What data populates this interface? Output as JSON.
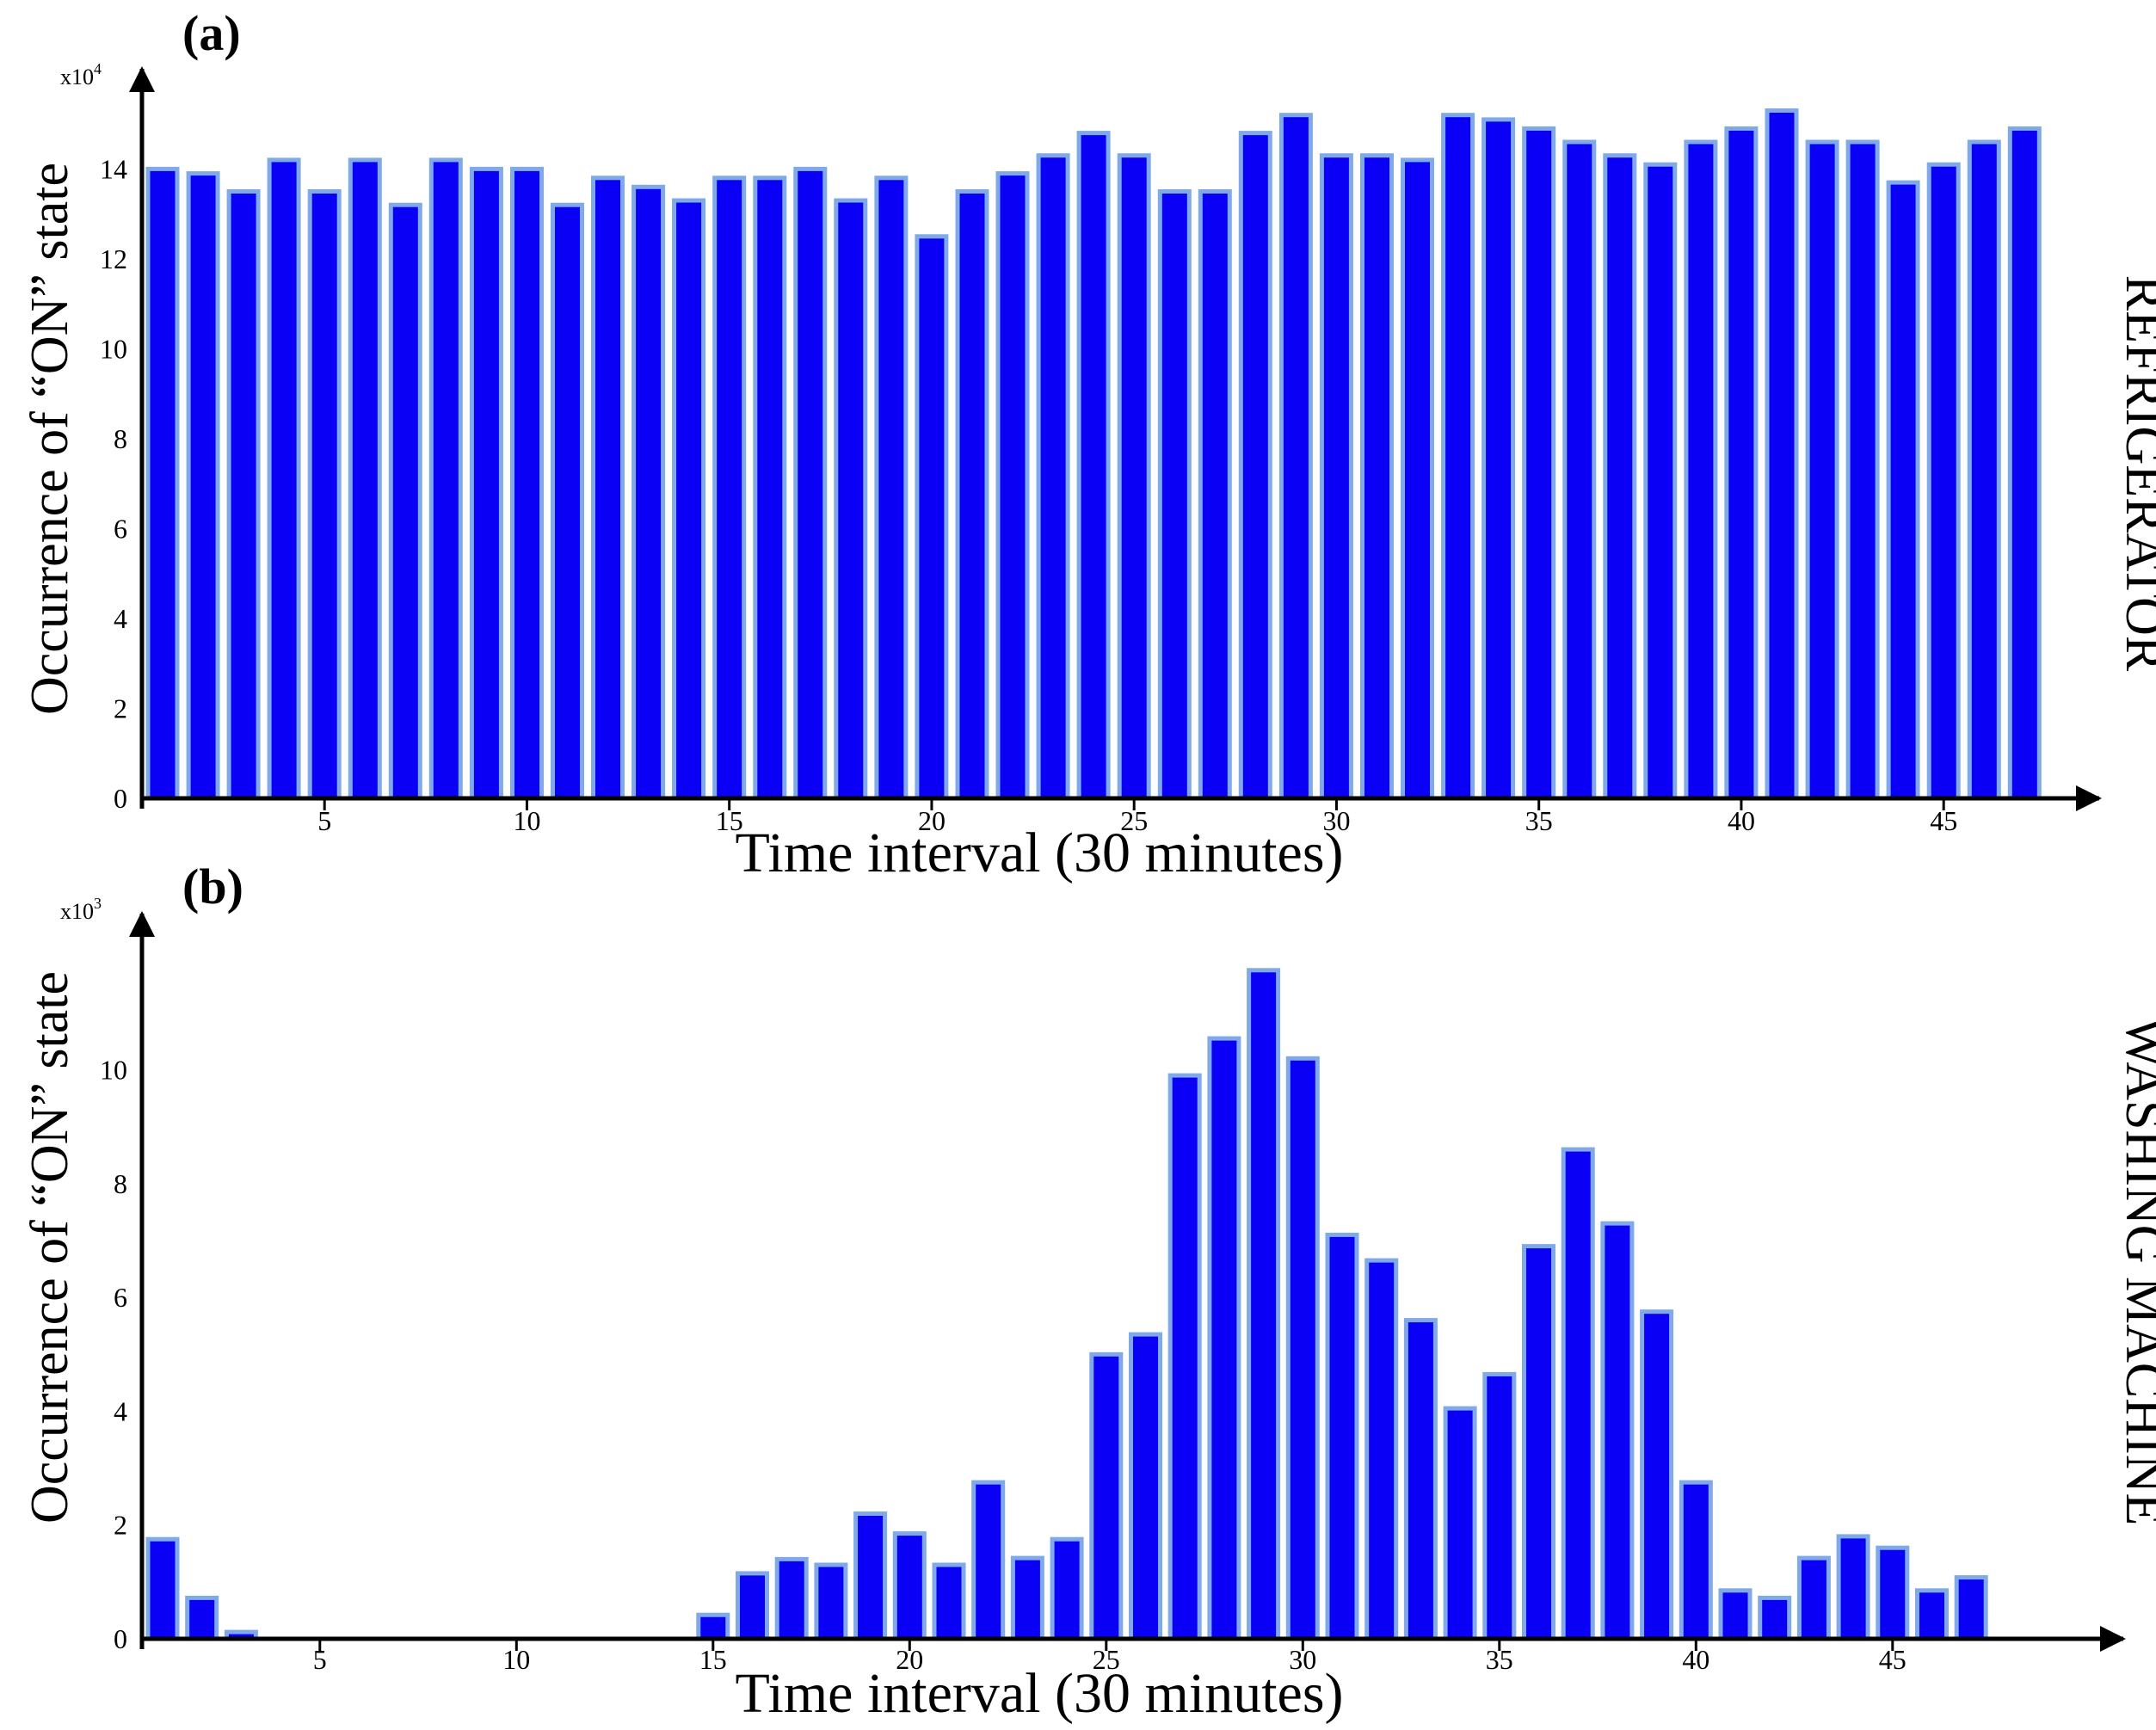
{
  "chart_data": [
    {
      "type": "bar",
      "panel_label": "(a)",
      "side_title": "REFRIGERATOR",
      "xlabel": "Time interval (30 minutes)",
      "ylabel": "Occurrence of “ON” state",
      "y_multiplier_base": "x10",
      "y_multiplier_exp": "4",
      "xlim": [
        0.5,
        48.5
      ],
      "ylim": [
        0,
        15.5
      ],
      "x_ticks": [
        5,
        10,
        15,
        20,
        25,
        30,
        35,
        40,
        45
      ],
      "y_ticks": [
        0,
        2,
        4,
        6,
        8,
        10,
        12,
        14
      ],
      "grid": false,
      "x": [
        1,
        2,
        3,
        4,
        5,
        6,
        7,
        8,
        9,
        10,
        11,
        12,
        13,
        14,
        15,
        16,
        17,
        18,
        19,
        20,
        21,
        22,
        23,
        24,
        25,
        26,
        27,
        28,
        29,
        30,
        31,
        32,
        33,
        34,
        35,
        36,
        37,
        38,
        39,
        40,
        41,
        42,
        43,
        44,
        45,
        46,
        47,
        48
      ],
      "values": [
        14.0,
        13.9,
        13.5,
        14.2,
        13.5,
        14.2,
        13.2,
        14.2,
        14.0,
        14.0,
        13.2,
        13.8,
        13.6,
        13.3,
        13.8,
        13.8,
        14.0,
        13.3,
        13.8,
        12.5,
        13.5,
        13.9,
        14.3,
        14.8,
        14.3,
        13.5,
        13.5,
        14.8,
        15.2,
        14.3,
        14.3,
        14.2,
        15.2,
        15.1,
        14.9,
        14.6,
        14.3,
        14.1,
        14.6,
        14.9,
        15.3,
        14.6,
        14.6,
        13.7,
        14.1,
        14.6,
        14.9,
        0
      ],
      "colors": {
        "fill": "#0a00f5",
        "edge": "#7fa9e8"
      }
    },
    {
      "type": "bar",
      "panel_label": "(b)",
      "side_title": "WASHING MACHINE",
      "xlabel": "Time interval (30 minutes)",
      "ylabel": "Occurrence of “ON” state",
      "y_multiplier_base": "x10",
      "y_multiplier_exp": "3",
      "xlim": [
        0.5,
        48.5
      ],
      "ylim": [
        0,
        12.2
      ],
      "x_ticks": [
        5,
        10,
        15,
        20,
        25,
        30,
        35,
        40,
        45
      ],
      "y_ticks": [
        0,
        2,
        4,
        6,
        8,
        10
      ],
      "grid": false,
      "x": [
        1,
        2,
        3,
        4,
        5,
        6,
        7,
        8,
        9,
        10,
        11,
        12,
        13,
        14,
        15,
        16,
        17,
        18,
        19,
        20,
        21,
        22,
        23,
        24,
        25,
        26,
        27,
        28,
        29,
        30,
        31,
        32,
        33,
        34,
        35,
        36,
        37,
        38,
        39,
        40,
        41,
        42,
        43,
        44,
        45,
        46,
        47,
        48
      ],
      "values": [
        1.75,
        0.72,
        0.12,
        0,
        0,
        0,
        0,
        0,
        0,
        0,
        0,
        0,
        0,
        0,
        0.42,
        1.15,
        1.4,
        1.3,
        2.2,
        1.85,
        1.3,
        2.75,
        1.42,
        1.75,
        5.0,
        5.35,
        9.9,
        10.55,
        11.75,
        10.2,
        7.1,
        6.65,
        5.6,
        4.05,
        4.65,
        6.9,
        8.6,
        7.3,
        5.75,
        2.75,
        0.85,
        0.72,
        1.42,
        1.8,
        1.6,
        0.85,
        1.08,
        0
      ],
      "colors": {
        "fill": "#0a00f5",
        "edge": "#7fa9e8"
      }
    }
  ]
}
